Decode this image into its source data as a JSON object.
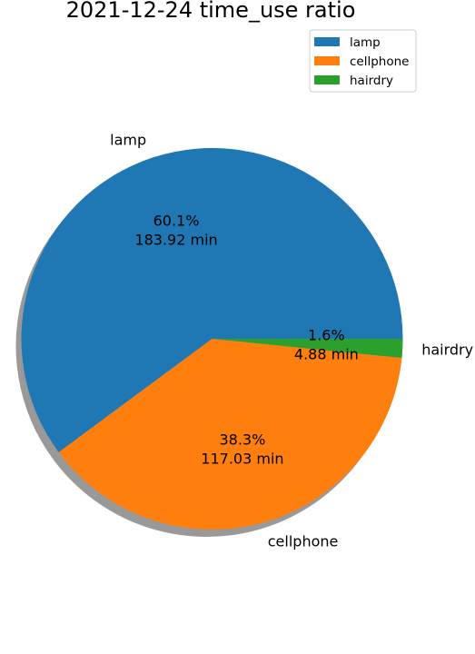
{
  "chart_data": {
    "type": "pie",
    "title": "2021-12-24 time_use ratio",
    "slices": [
      {
        "label": "lamp",
        "value": 183.92,
        "percent_text": "60.1%",
        "minutes_text": "183.92 min",
        "color": "#1f77b4"
      },
      {
        "label": "cellphone",
        "value": 117.03,
        "percent_text": "38.3%",
        "minutes_text": "117.03 min",
        "color": "#ff7f0e"
      },
      {
        "label": "hairdry",
        "value": 4.88,
        "percent_text": "1.6%",
        "minutes_text": "4.88 min",
        "color": "#2ca02c"
      }
    ],
    "legend": {
      "placement": "top-right",
      "entries": [
        "lamp",
        "cellphone",
        "hairdry"
      ]
    },
    "shadow": true,
    "start_angle": "0 degrees, counterclockwise"
  }
}
